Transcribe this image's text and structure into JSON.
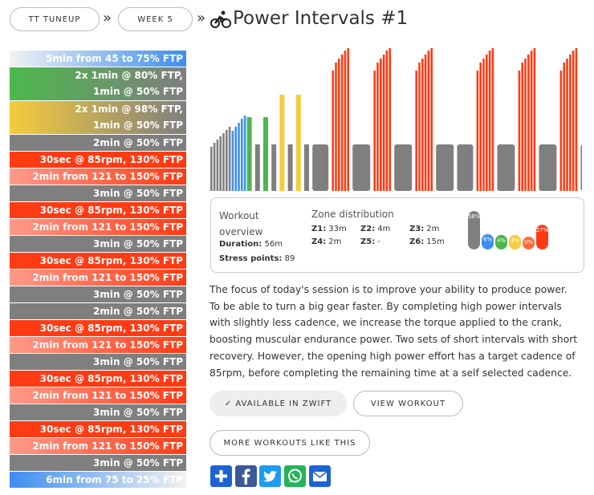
{
  "breadcrumbs": [
    "TT TUNEUP",
    "WEEK 5"
  ],
  "separator": "»",
  "title": "Power Intervals #1",
  "intervals": [
    {
      "lines": [
        "5min from 45 to 75% FTP"
      ],
      "colors": [
        "#f2f2f2",
        "#3d8ef0"
      ]
    },
    {
      "lines": [
        "2x 1min @ 80% FTP,",
        "1min @ 50% FTP"
      ],
      "colors": [
        "#4cb84c",
        "#7f7f7f"
      ]
    },
    {
      "lines": [
        "2x 1min @ 98% FTP,",
        "1min @ 50% FTP"
      ],
      "colors": [
        "#f5cc3c",
        "#7f7f7f"
      ]
    },
    {
      "lines": [
        "2min @ 50% FTP"
      ],
      "colors": [
        "#7f7f7f",
        "#7f7f7f"
      ]
    },
    {
      "lines": [
        "30sec @ 85rpm, 130% FTP"
      ],
      "colors": [
        "#ff3b14",
        "#ff3b14"
      ]
    },
    {
      "lines": [
        "2min from 121 to 150% FTP"
      ],
      "colors": [
        "#ff9a8a",
        "#ff3b14"
      ]
    },
    {
      "lines": [
        "3min @ 50% FTP"
      ],
      "colors": [
        "#7f7f7f",
        "#7f7f7f"
      ]
    },
    {
      "lines": [
        "30sec @ 85rpm, 130% FTP"
      ],
      "colors": [
        "#ff3b14",
        "#ff3b14"
      ]
    },
    {
      "lines": [
        "2min from 121 to 150% FTP"
      ],
      "colors": [
        "#ff9a8a",
        "#ff3b14"
      ]
    },
    {
      "lines": [
        "3min @ 50% FTP"
      ],
      "colors": [
        "#7f7f7f",
        "#7f7f7f"
      ]
    },
    {
      "lines": [
        "30sec @ 85rpm, 130% FTP"
      ],
      "colors": [
        "#ff3b14",
        "#ff3b14"
      ]
    },
    {
      "lines": [
        "2min from 121 to 150% FTP"
      ],
      "colors": [
        "#ff9a8a",
        "#ff3b14"
      ]
    },
    {
      "lines": [
        "3min @ 50% FTP"
      ],
      "colors": [
        "#7f7f7f",
        "#7f7f7f"
      ]
    },
    {
      "lines": [
        "2min @ 50% FTP"
      ],
      "colors": [
        "#7f7f7f",
        "#7f7f7f"
      ]
    },
    {
      "lines": [
        "30sec @ 85rpm, 130% FTP"
      ],
      "colors": [
        "#ff3b14",
        "#ff3b14"
      ]
    },
    {
      "lines": [
        "2min from 121 to 150% FTP"
      ],
      "colors": [
        "#ff9a8a",
        "#ff3b14"
      ]
    },
    {
      "lines": [
        "3min @ 50% FTP"
      ],
      "colors": [
        "#7f7f7f",
        "#7f7f7f"
      ]
    },
    {
      "lines": [
        "30sec @ 85rpm, 130% FTP"
      ],
      "colors": [
        "#ff3b14",
        "#ff3b14"
      ]
    },
    {
      "lines": [
        "2min from 121 to 150% FTP"
      ],
      "colors": [
        "#ff9a8a",
        "#ff3b14"
      ]
    },
    {
      "lines": [
        "3min @ 50% FTP"
      ],
      "colors": [
        "#7f7f7f",
        "#7f7f7f"
      ]
    },
    {
      "lines": [
        "30sec @ 85rpm, 130% FTP"
      ],
      "colors": [
        "#ff3b14",
        "#ff3b14"
      ]
    },
    {
      "lines": [
        "2min from 121 to 150% FTP"
      ],
      "colors": [
        "#ff9a8a",
        "#ff3b14"
      ]
    },
    {
      "lines": [
        "3min @ 50% FTP"
      ],
      "colors": [
        "#7f7f7f",
        "#7f7f7f"
      ]
    },
    {
      "lines": [
        "6min from 75 to 25% FTP"
      ],
      "colors": [
        "#3d8ef0",
        "#f2f2f2"
      ]
    }
  ],
  "overview": {
    "heading": "Workout overview",
    "duration_label": "Duration:",
    "duration": "56m",
    "stress_label": "Stress points:",
    "stress": "89",
    "zone_heading": "Zone distribution",
    "zones": [
      {
        "label": "Z1:",
        "time": "33m"
      },
      {
        "label": "Z2:",
        "time": "4m"
      },
      {
        "label": "Z3:",
        "time": "2m"
      },
      {
        "label": "Z4:",
        "time": "2m"
      },
      {
        "label": "Z5:",
        "time": "-"
      },
      {
        "label": "Z6:",
        "time": "15m"
      }
    ],
    "distribution": {
      "values": [
        58,
        6,
        4,
        4,
        0,
        27
      ],
      "labels": [
        "58%",
        "6%",
        "4%",
        "4%",
        "0%",
        "27%"
      ],
      "colors": [
        "#7f7f7f",
        "#3d8ef0",
        "#4cb84c",
        "#f5cc3c",
        "#ff6a3c",
        "#ff3b14"
      ]
    }
  },
  "description": "The focus of today's session is to improve your ability to produce power. To be able to turn a big gear faster. By completing high power intervals with slightly less cadence, we increase the torque applied to the crank, boosting muscular endurance power. Two sets of short intervals with short recovery. However, the opening high power effort has a target cadence of 85rpm, before completing the remaining time at a self selected cadence.",
  "buttons": [
    "✓ AVAILABLE IN ZWIFT",
    "VIEW WORKOUT",
    "MORE WORKOUTS LIKE THIS"
  ]
}
